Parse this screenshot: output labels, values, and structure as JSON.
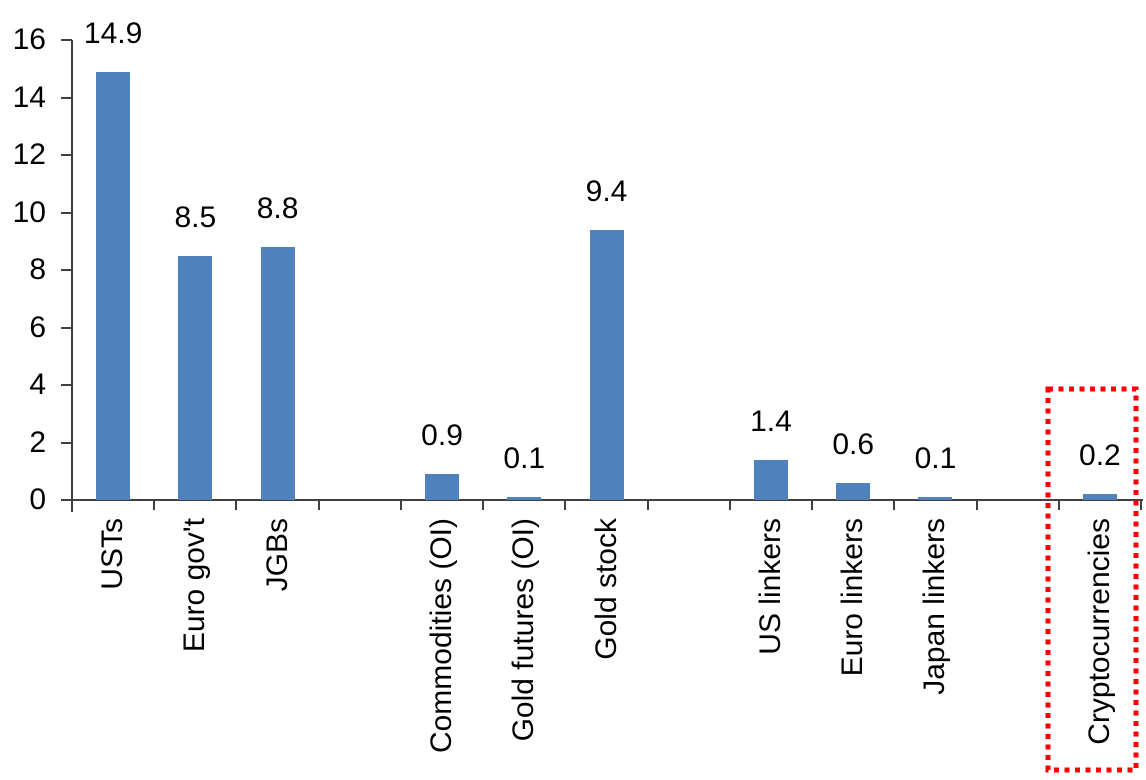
{
  "chart_data": {
    "type": "bar",
    "title": "",
    "xlabel": "",
    "ylabel": "",
    "ylim": [
      0,
      16
    ],
    "y_ticks": [
      0,
      2,
      4,
      6,
      8,
      10,
      12,
      14,
      16
    ],
    "grid": "off",
    "legend": "none",
    "slot_count": 13,
    "bar_color": "#4F81BD",
    "axis_color": "#404040",
    "text_color": "#000000",
    "highlight_color": "#FF0000",
    "categories": [
      {
        "label": "USTs",
        "value": 14.9,
        "value_label": "14.9",
        "slot": 0,
        "highlighted": false
      },
      {
        "label": "Euro gov't",
        "value": 8.5,
        "value_label": "8.5",
        "slot": 1,
        "highlighted": false
      },
      {
        "label": "JGBs",
        "value": 8.8,
        "value_label": "8.8",
        "slot": 2,
        "highlighted": false
      },
      {
        "label": "Commodities (OI)",
        "value": 0.9,
        "value_label": "0.9",
        "slot": 4,
        "highlighted": false
      },
      {
        "label": "Gold futures (OI)",
        "value": 0.1,
        "value_label": "0.1",
        "slot": 5,
        "highlighted": false
      },
      {
        "label": "Gold stock",
        "value": 9.4,
        "value_label": "9.4",
        "slot": 6,
        "highlighted": false
      },
      {
        "label": "US linkers",
        "value": 1.4,
        "value_label": "1.4",
        "slot": 8,
        "highlighted": false
      },
      {
        "label": "Euro linkers",
        "value": 0.6,
        "value_label": "0.6",
        "slot": 9,
        "highlighted": false
      },
      {
        "label": "Japan linkers",
        "value": 0.1,
        "value_label": "0.1",
        "slot": 10,
        "highlighted": false
      },
      {
        "label": "Cryptocurrencies",
        "value": 0.2,
        "value_label": "0.2",
        "slot": 12,
        "highlighted": true
      }
    ],
    "highlight": {
      "category": "Cryptocurrencies",
      "style": "red-dotted-rectangle"
    }
  }
}
